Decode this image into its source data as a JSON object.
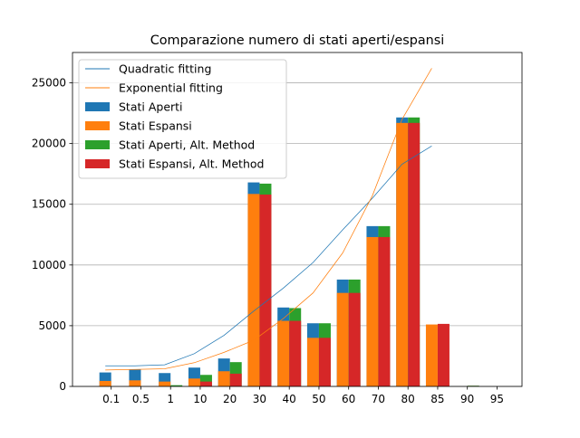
{
  "chart_data": {
    "type": "bar",
    "title": "Comparazione numero di stati aperti/espansi",
    "xlabel": "",
    "ylabel": "",
    "categories": [
      "0.1",
      "0.5",
      "1",
      "10",
      "20",
      "30",
      "40",
      "50",
      "60",
      "70",
      "80",
      "85",
      "90",
      "95"
    ],
    "ylim": [
      0,
      27500
    ],
    "yticks": [
      0,
      5000,
      10000,
      15000,
      20000,
      25000
    ],
    "grid": "horizontal",
    "legend_position": "top-left",
    "series": [
      {
        "name": "Stati Aperti",
        "kind": "bar",
        "group": "first",
        "color": "#1f77b4",
        "values": [
          1150,
          1400,
          1100,
          1550,
          2300,
          16800,
          6500,
          5200,
          8800,
          13200,
          22150,
          0,
          0,
          0
        ]
      },
      {
        "name": "Stati Espansi",
        "kind": "bar",
        "group": "first",
        "color": "#ff7f0e",
        "values": [
          450,
          500,
          400,
          650,
          1250,
          15850,
          5400,
          4000,
          7700,
          12300,
          21700,
          5100,
          0,
          0
        ]
      },
      {
        "name": "Stati Aperti, Alt. Method",
        "kind": "bar",
        "group": "second",
        "color": "#2ca02c",
        "values": [
          0,
          0,
          100,
          950,
          2000,
          16700,
          6450,
          5200,
          8800,
          13200,
          22150,
          0,
          60,
          0
        ]
      },
      {
        "name": "Stati Espansi, Alt. Method",
        "kind": "bar",
        "group": "second",
        "color": "#d62728",
        "values": [
          0,
          0,
          0,
          400,
          1050,
          15800,
          5400,
          4000,
          7700,
          12300,
          21700,
          5150,
          30,
          0
        ]
      },
      {
        "name": "Quadratic fitting",
        "kind": "line",
        "color": "#1f77b4",
        "x": [
          0,
          1,
          2,
          3,
          4,
          5,
          6,
          7,
          8,
          9,
          10,
          11
        ],
        "values": [
          1700,
          1700,
          1780,
          2700,
          4200,
          6200,
          8100,
          10200,
          12900,
          15500,
          18300,
          19800
        ]
      },
      {
        "name": "Exponential fitting",
        "kind": "line",
        "color": "#ff7f0e",
        "x": [
          0,
          1,
          2,
          3,
          4,
          5,
          6,
          7,
          8,
          9,
          10,
          11
        ],
        "values": [
          1350,
          1400,
          1450,
          1950,
          2800,
          3800,
          5600,
          7700,
          11000,
          15700,
          22000,
          26200
        ]
      }
    ]
  }
}
